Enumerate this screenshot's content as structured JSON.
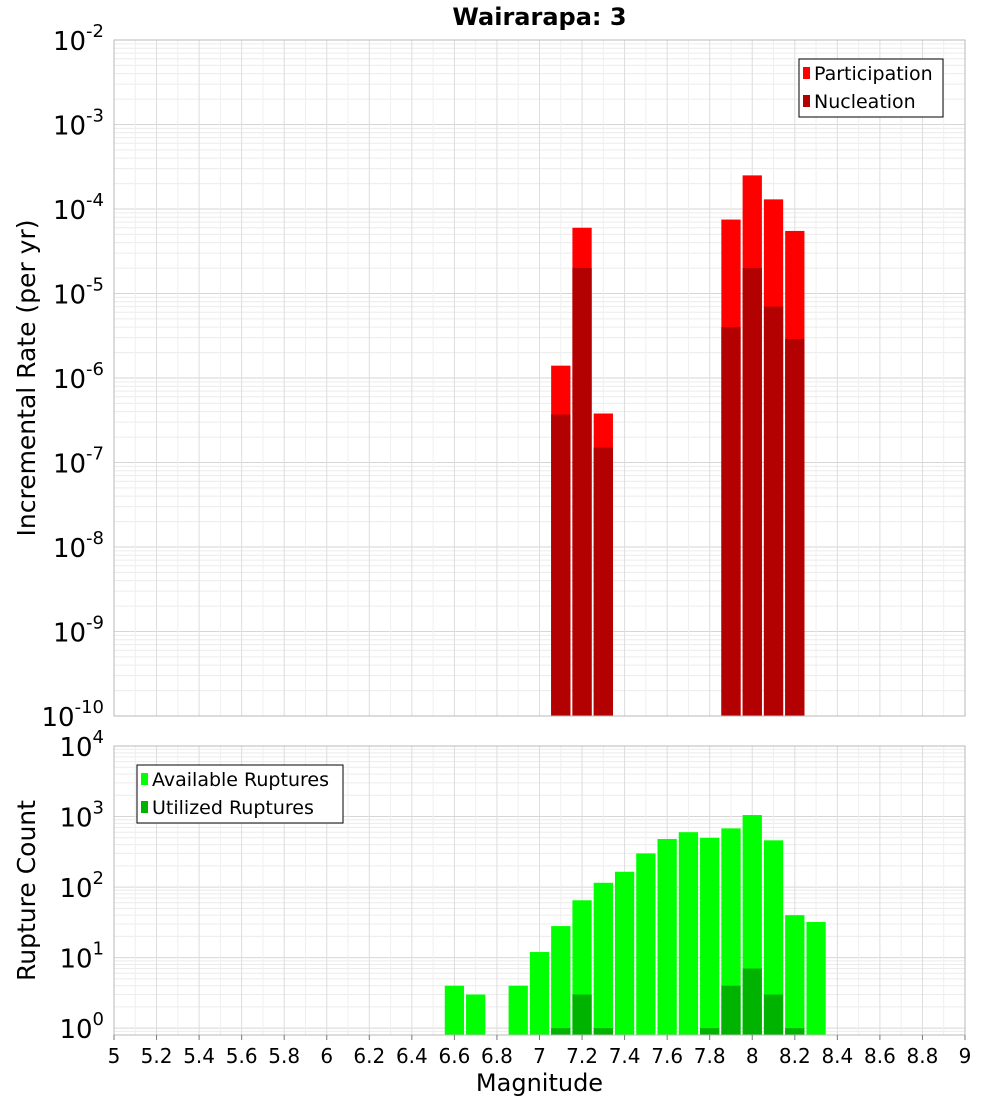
{
  "chart_data": [
    {
      "type": "bar",
      "title": "Wairarapa: 3",
      "xlabel": "",
      "ylabel": "Incremental Rate (per yr)",
      "yscale": "log",
      "ylim": [
        1e-10,
        0.01
      ],
      "xlim": [
        5,
        9
      ],
      "y_tick_exponents": [
        -10,
        -9,
        -8,
        -7,
        -6,
        -5,
        -4,
        -3,
        -2
      ],
      "bar_width": 0.1,
      "overlay": true,
      "legend_position": "top-right",
      "series": [
        {
          "name": "Participation",
          "color": "#ff0000",
          "x": [
            7.1,
            7.2,
            7.3,
            7.9,
            8.0,
            8.1,
            8.2
          ],
          "values": [
            1.4e-06,
            6e-05,
            3.8e-07,
            7.5e-05,
            0.00025,
            0.00013,
            5.5e-05
          ]
        },
        {
          "name": "Nucleation",
          "color": "#b30000",
          "x": [
            7.1,
            7.2,
            7.3,
            7.9,
            8.0,
            8.1,
            8.2
          ],
          "values": [
            3.7e-07,
            2e-05,
            1.5e-07,
            4e-06,
            2e-05,
            7e-06,
            2.9e-06
          ]
        }
      ]
    },
    {
      "type": "bar",
      "title": "",
      "xlabel": "Magnitude",
      "ylabel": "Rupture Count",
      "yscale": "log",
      "ylim": [
        0.8,
        10000
      ],
      "xlim": [
        5,
        9
      ],
      "y_tick_exponents": [
        0,
        1,
        2,
        3,
        4
      ],
      "x_ticks": [
        "5",
        "5.2",
        "5.4",
        "5.6",
        "5.8",
        "6",
        "6.2",
        "6.4",
        "6.6",
        "6.8",
        "7",
        "7.2",
        "7.4",
        "7.6",
        "7.8",
        "8",
        "8.2",
        "8.4",
        "8.6",
        "8.8",
        "9"
      ],
      "bar_width": 0.1,
      "overlay": true,
      "legend_position": "top-left",
      "series": [
        {
          "name": "Available Ruptures",
          "color": "#00ff00",
          "x": [
            6.6,
            6.7,
            6.9,
            7.0,
            7.1,
            7.2,
            7.3,
            7.4,
            7.5,
            7.6,
            7.7,
            7.8,
            7.9,
            8.0,
            8.1,
            8.2,
            8.3
          ],
          "values": [
            4,
            3,
            4,
            12,
            28,
            65,
            115,
            165,
            300,
            480,
            600,
            500,
            680,
            1050,
            460,
            40,
            32
          ]
        },
        {
          "name": "Utilized Ruptures",
          "color": "#00b300",
          "x": [
            7.1,
            7.2,
            7.3,
            7.8,
            7.9,
            8.0,
            8.1,
            8.2
          ],
          "values": [
            1,
            3,
            1,
            1,
            4,
            7,
            3,
            1
          ]
        }
      ]
    }
  ]
}
